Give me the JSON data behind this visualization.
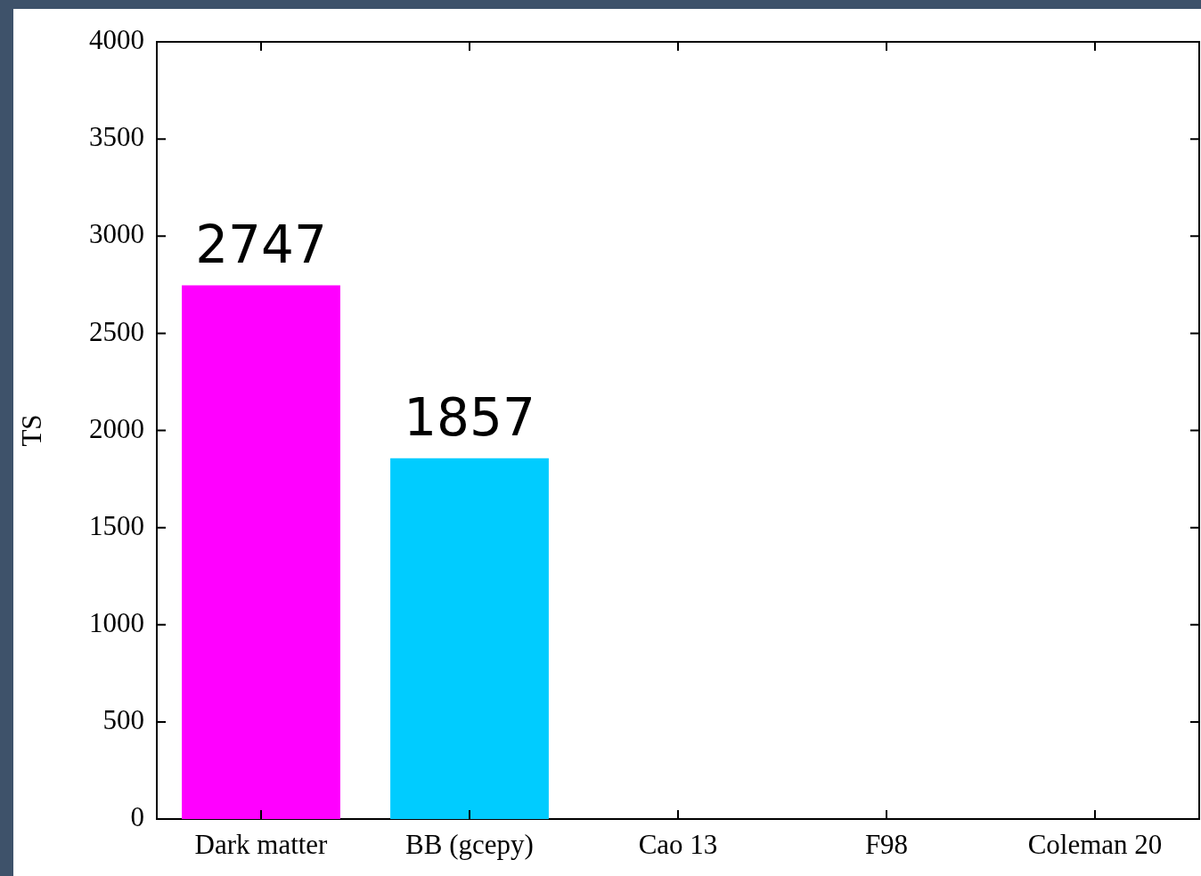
{
  "chart_data": {
    "type": "bar",
    "ylabel": "TS",
    "categories": [
      "Dark matter",
      "BB (gcepy)",
      "Cao 13",
      "F98",
      "Coleman 20"
    ],
    "values": [
      2747,
      1857,
      null,
      null,
      null
    ],
    "colors": [
      "#ff00ff",
      "#00ccff",
      null,
      null,
      null
    ],
    "ylim": [
      0,
      4000
    ],
    "yticks": [
      0,
      500,
      1000,
      1500,
      2000,
      2500,
      3000,
      3500,
      4000
    ],
    "grid": false,
    "legend": false,
    "data_labels": true
  }
}
